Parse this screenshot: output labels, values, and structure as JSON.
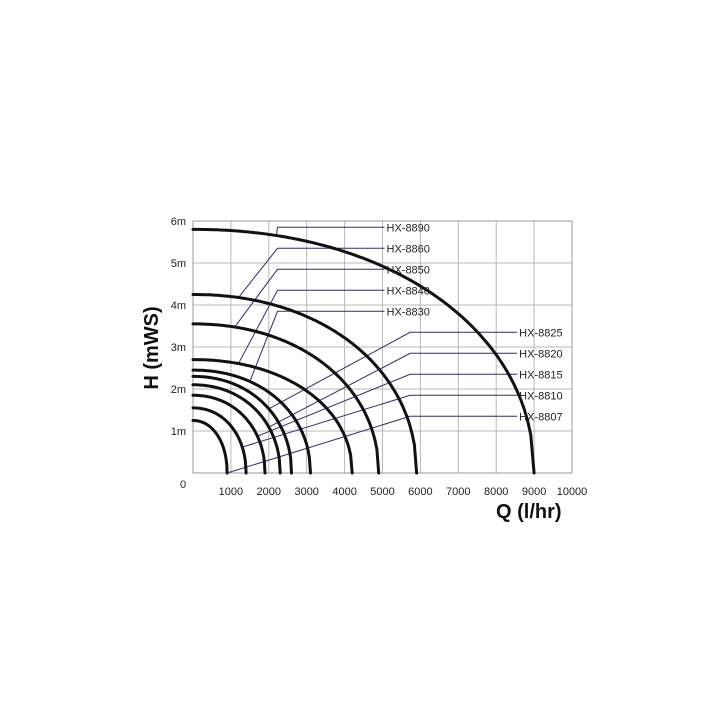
{
  "chart_data": {
    "type": "line",
    "xlabel": "Q (l/hr)",
    "ylabel": "H (mWS)",
    "xlim": [
      0,
      10000
    ],
    "ylim": [
      0,
      6
    ],
    "x_ticks": [
      "0",
      "1000",
      "2000",
      "3000",
      "4000",
      "5000",
      "6000",
      "7000",
      "8000",
      "9000",
      "10000"
    ],
    "y_ticks": [
      "1m",
      "2m",
      "3m",
      "4m",
      "5m",
      "6m"
    ],
    "grid": true,
    "legend_position": "right",
    "series": [
      {
        "name": "HX-8890",
        "max_head": 5.8,
        "max_flow": 9000,
        "label_pos": [
          5000,
          5.85
        ],
        "anchor_x": 2200
      },
      {
        "name": "HX-8860",
        "max_head": 4.25,
        "max_flow": 5900,
        "label_pos": [
          5000,
          5.35
        ],
        "anchor_x": 1200
      },
      {
        "name": "HX-8850",
        "max_head": 3.55,
        "max_flow": 4900,
        "label_pos": [
          5000,
          4.85
        ],
        "anchor_x": 1100
      },
      {
        "name": "HX-8840",
        "max_head": 2.7,
        "max_flow": 4200,
        "label_pos": [
          5000,
          4.35
        ],
        "anchor_x": 1200
      },
      {
        "name": "HX-8830",
        "max_head": 2.45,
        "max_flow": 3100,
        "label_pos": [
          5000,
          3.85
        ],
        "anchor_x": 1500
      },
      {
        "name": "HX-8825",
        "max_head": 2.3,
        "max_flow": 2600,
        "label_pos": [
          8500,
          3.35
        ],
        "anchor_x": 2000
      },
      {
        "name": "HX-8820",
        "max_head": 2.1,
        "max_flow": 2300,
        "label_pos": [
          8500,
          2.85
        ],
        "anchor_x": 2000
      },
      {
        "name": "HX-8815",
        "max_head": 1.85,
        "max_flow": 1900,
        "label_pos": [
          8500,
          2.35
        ],
        "anchor_x": 1700
      },
      {
        "name": "HX-8810",
        "max_head": 1.55,
        "max_flow": 1400,
        "label_pos": [
          8500,
          1.85
        ],
        "anchor_x": 1300
      },
      {
        "name": "HX-8807",
        "max_head": 1.25,
        "max_flow": 900,
        "label_pos": [
          8500,
          1.35
        ],
        "anchor_x": 900
      }
    ]
  }
}
